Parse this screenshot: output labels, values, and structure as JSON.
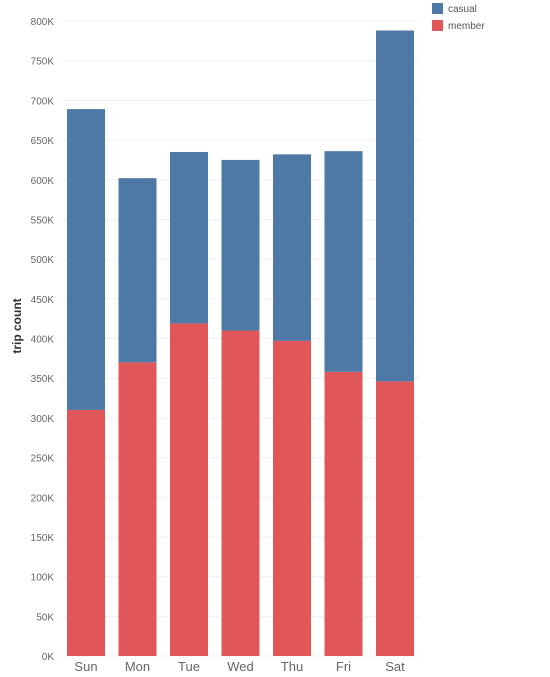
{
  "chart_data": {
    "type": "bar",
    "stacked": true,
    "categories": [
      "Sun",
      "Mon",
      "Tue",
      "Wed",
      "Thu",
      "Fri",
      "Sat"
    ],
    "series": [
      {
        "name": "member",
        "color": "#e15759",
        "values": [
          310000,
          370000,
          419000,
          410000,
          397000,
          358000,
          346000
        ]
      },
      {
        "name": "casual",
        "color": "#4e79a7",
        "values": [
          379000,
          232000,
          216000,
          215000,
          235000,
          278000,
          442000
        ]
      }
    ],
    "ylabel": "trip count",
    "xlabel": "",
    "ylim": [
      0,
      800000
    ],
    "yticks": [
      0,
      50000,
      100000,
      150000,
      200000,
      250000,
      300000,
      350000,
      400000,
      450000,
      500000,
      550000,
      600000,
      650000,
      700000,
      750000,
      800000
    ],
    "ytick_labels": [
      "0K",
      "50K",
      "100K",
      "150K",
      "200K",
      "250K",
      "300K",
      "350K",
      "400K",
      "450K",
      "500K",
      "550K",
      "600K",
      "650K",
      "700K",
      "750K",
      "800K"
    ],
    "legend": {
      "position": "top-right",
      "entries": [
        {
          "label": "casual",
          "color": "#4e79a7"
        },
        {
          "label": "member",
          "color": "#e15759"
        }
      ]
    },
    "grid": true
  }
}
